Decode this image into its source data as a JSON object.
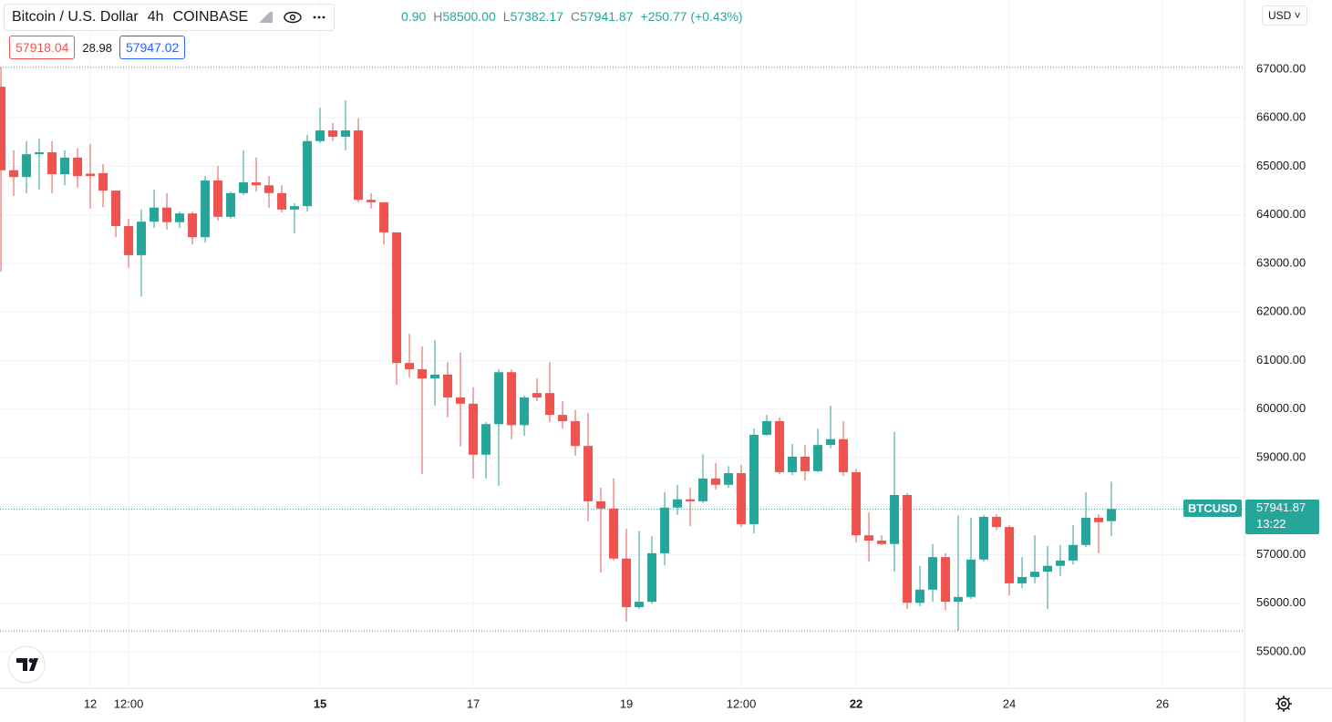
{
  "chart_data": {
    "type": "candlestick",
    "header": {
      "symbol": "Bitcoin / U.S. Dollar",
      "interval": "4h",
      "exchange": "COINBASE",
      "open_partial": "0.90",
      "high_key": "H",
      "high": "58500.00",
      "low_key": "L",
      "low": "57382.17",
      "close_key": "C",
      "close": "57941.87",
      "change": "+250.77 (+0.43%)",
      "bid": "57918.04",
      "spread": "28.98",
      "ask": "57947.02",
      "currency": "USD",
      "ticker": "BTCUSD",
      "countdown": "13:22"
    },
    "up_color": "#26a69a",
    "down_color": "#ef5350",
    "grid": true,
    "xlim": [
      -4.3,
      385.7
    ],
    "ylim": [
      54267,
      68427
    ],
    "xticks": [
      {
        "value": 24,
        "label": "12"
      },
      {
        "value": 36,
        "label": "12:00"
      },
      {
        "value": 96,
        "label": "15"
      },
      {
        "value": 144,
        "label": "17"
      },
      {
        "value": 192,
        "label": "19"
      },
      {
        "value": 228,
        "label": "12:00"
      },
      {
        "value": 264,
        "label": "22"
      },
      {
        "value": 312,
        "label": "24"
      },
      {
        "value": 360,
        "label": "26"
      }
    ],
    "yticks": [
      {
        "value": 55000,
        "label": "55000.00"
      },
      {
        "value": 56000,
        "label": "56000.00"
      },
      {
        "value": 57000,
        "label": "57000.00"
      },
      {
        "value": 58000,
        "label": "58000.00"
      },
      {
        "value": 59000,
        "label": "59000.00"
      },
      {
        "value": 60000,
        "label": "60000.00"
      },
      {
        "value": 61000,
        "label": "61000.00"
      },
      {
        "value": 62000,
        "label": "62000.00"
      },
      {
        "value": 63000,
        "label": "63000.00"
      },
      {
        "value": 64000,
        "label": "64000.00"
      },
      {
        "value": 65000,
        "label": "65000.00"
      },
      {
        "value": 66000,
        "label": "66000.00"
      },
      {
        "value": 67000,
        "label": "67000.00"
      }
    ],
    "range_lines": [
      67040,
      55430
    ],
    "x": [
      -4,
      0,
      4,
      8,
      12,
      16,
      20,
      24,
      28,
      32,
      36,
      40,
      44,
      48,
      52,
      56,
      60,
      64,
      68,
      72,
      76,
      80,
      84,
      88,
      92,
      96,
      100,
      104,
      108,
      112,
      116,
      120,
      124,
      128,
      132,
      136,
      140,
      144,
      148,
      152,
      156,
      160,
      164,
      168,
      172,
      176,
      180,
      184,
      188,
      192,
      196,
      200,
      204,
      208,
      212,
      216,
      220,
      224,
      228,
      232,
      236,
      240,
      244,
      248,
      252,
      256,
      260,
      264,
      268,
      272,
      276,
      280,
      284,
      288,
      292,
      296,
      300,
      304,
      308,
      312,
      316,
      320,
      324,
      328,
      332,
      336,
      340,
      344
    ],
    "open": [
      66640,
      64920,
      64780,
      65250,
      65290,
      64840,
      65180,
      64850,
      64860,
      64500,
      63770,
      63170,
      63860,
      64150,
      63850,
      64030,
      63540,
      64710,
      63960,
      64450,
      64670,
      64610,
      64450,
      64110,
      64180,
      65520,
      65740,
      65610,
      65740,
      64310,
      64260,
      63640,
      60950,
      60820,
      60630,
      60710,
      60240,
      60110,
      59060,
      59690,
      60760,
      59670,
      60330,
      60330,
      59880,
      59750,
      59240,
      58100,
      57950,
      56920,
      55920,
      56030,
      57030,
      57970,
      58140,
      58100,
      58570,
      58440,
      58680,
      57630,
      59470,
      59750,
      58700,
      59020,
      58720,
      59260,
      59380,
      58700,
      57400,
      57290,
      57220,
      58230,
      56010,
      56280,
      56950,
      56030,
      56130,
      56900,
      57780,
      57570,
      56410,
      56540,
      56650,
      56770,
      56880,
      57200,
      57760,
      57690.9
    ],
    "high": [
      67040,
      65330,
      65520,
      65570,
      65520,
      65330,
      65370,
      65460,
      65050,
      64500,
      63920,
      64110,
      64520,
      64450,
      64070,
      64070,
      64800,
      65010,
      64480,
      65330,
      65180,
      64800,
      64610,
      64240,
      65650,
      66210,
      65890,
      66360,
      65990,
      64450,
      64260,
      63640,
      61550,
      61290,
      61420,
      60970,
      61160,
      60450,
      59730,
      60820,
      60820,
      60280,
      60630,
      60970,
      60160,
      59980,
      59920,
      58380,
      58570,
      57530,
      57490,
      57380,
      58290,
      58440,
      58380,
      59070,
      58890,
      58820,
      58850,
      59600,
      59880,
      59830,
      59280,
      59260,
      59600,
      60070,
      59750,
      58770,
      57870,
      57400,
      59530,
      58270,
      56770,
      57220,
      57030,
      57810,
      57760,
      57820,
      57830,
      57610,
      56950,
      57400,
      57180,
      57200,
      57610,
      58290,
      57830,
      58500
    ],
    "low": [
      62830,
      64390,
      64450,
      64520,
      64450,
      64610,
      64560,
      64130,
      64160,
      63540,
      62910,
      62320,
      63730,
      63700,
      63730,
      63390,
      63430,
      63880,
      63920,
      64410,
      64480,
      64150,
      64050,
      63620,
      64070,
      65480,
      65520,
      65330,
      64260,
      64130,
      63390,
      60500,
      60650,
      58660,
      60070,
      59830,
      59230,
      58570,
      58570,
      58420,
      59380,
      59450,
      60160,
      59730,
      59600,
      59040,
      57690,
      56630,
      56880,
      55620,
      55880,
      55990,
      56780,
      57820,
      57590,
      58060,
      58340,
      58380,
      57570,
      57440,
      59450,
      58660,
      58640,
      58530,
      58700,
      59190,
      58620,
      57250,
      56860,
      57200,
      56650,
      55880,
      55940,
      56030,
      55860,
      55430,
      56090,
      56860,
      57510,
      56160,
      56310,
      56410,
      55880,
      56560,
      56800,
      57160,
      57030,
      57382.17
    ],
    "close": [
      64920,
      64780,
      65250,
      65290,
      64840,
      65180,
      64800,
      64800,
      64500,
      63770,
      63170,
      63860,
      64150,
      63850,
      64030,
      63540,
      64710,
      63960,
      64450,
      64670,
      64610,
      64450,
      64110,
      64180,
      65520,
      65740,
      65610,
      65740,
      64310,
      64260,
      63640,
      60950,
      60820,
      60630,
      60710,
      60240,
      60110,
      59060,
      59690,
      60760,
      59670,
      60240,
      60240,
      59880,
      59750,
      59240,
      58100,
      57950,
      56920,
      55920,
      56030,
      57030,
      57970,
      58140,
      58100,
      58570,
      58440,
      58680,
      57630,
      59470,
      59750,
      58700,
      59020,
      58720,
      59260,
      59380,
      58700,
      57400,
      57290,
      57220,
      58230,
      56010,
      56280,
      56950,
      56030,
      56130,
      56900,
      57780,
      57570,
      56410,
      56540,
      56650,
      56770,
      56880,
      57200,
      57760,
      57670,
      57941.87
    ]
  }
}
